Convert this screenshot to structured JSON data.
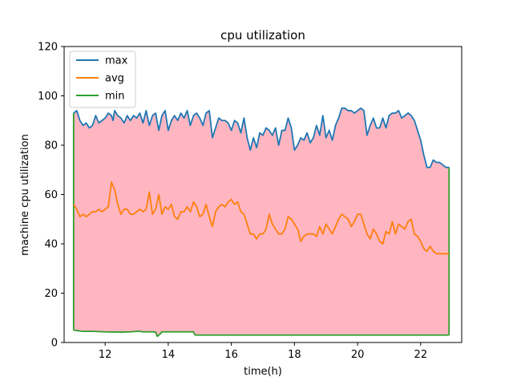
{
  "chart_data": {
    "type": "area",
    "title": "cpu utilization",
    "xlabel": "time(h)",
    "ylabel": "machine cpu utilization",
    "xlim": [
      10.7,
      23.3
    ],
    "ylim": [
      0,
      120
    ],
    "xticks": [
      12,
      14,
      16,
      18,
      20,
      22
    ],
    "yticks": [
      0,
      20,
      40,
      60,
      80,
      100,
      120
    ],
    "grid": false,
    "legend_position": "top-left",
    "fill_between": {
      "upper": "max",
      "lower": "min",
      "color": "#ffb6c1"
    },
    "series": [
      {
        "name": "max",
        "color": "#1f77b4",
        "points": [
          [
            11.0,
            93
          ],
          [
            11.1,
            94
          ],
          [
            11.2,
            90
          ],
          [
            11.3,
            88
          ],
          [
            11.4,
            89
          ],
          [
            11.5,
            87
          ],
          [
            11.6,
            88
          ],
          [
            11.7,
            92
          ],
          [
            11.8,
            89
          ],
          [
            11.9,
            90
          ],
          [
            12.0,
            91
          ],
          [
            12.1,
            93
          ],
          [
            12.2,
            92
          ],
          [
            12.25,
            90
          ],
          [
            12.3,
            94
          ],
          [
            12.4,
            92
          ],
          [
            12.5,
            91
          ],
          [
            12.6,
            89
          ],
          [
            12.7,
            92
          ],
          [
            12.8,
            90
          ],
          [
            12.9,
            92
          ],
          [
            13.0,
            91
          ],
          [
            13.1,
            93
          ],
          [
            13.2,
            89
          ],
          [
            13.3,
            94
          ],
          [
            13.4,
            88
          ],
          [
            13.5,
            92
          ],
          [
            13.6,
            93
          ],
          [
            13.7,
            86
          ],
          [
            13.8,
            92
          ],
          [
            13.9,
            94
          ],
          [
            14.0,
            86
          ],
          [
            14.1,
            90
          ],
          [
            14.2,
            92
          ],
          [
            14.3,
            90
          ],
          [
            14.4,
            93
          ],
          [
            14.5,
            91
          ],
          [
            14.6,
            94
          ],
          [
            14.7,
            88
          ],
          [
            14.8,
            92
          ],
          [
            14.9,
            93
          ],
          [
            15.0,
            91
          ],
          [
            15.1,
            88
          ],
          [
            15.2,
            93
          ],
          [
            15.3,
            94
          ],
          [
            15.4,
            83
          ],
          [
            15.5,
            87
          ],
          [
            15.6,
            91
          ],
          [
            15.7,
            90
          ],
          [
            15.8,
            90
          ],
          [
            15.9,
            89
          ],
          [
            16.0,
            86
          ],
          [
            16.1,
            90
          ],
          [
            16.2,
            89
          ],
          [
            16.3,
            85
          ],
          [
            16.4,
            91
          ],
          [
            16.5,
            83
          ],
          [
            16.6,
            78
          ],
          [
            16.7,
            83
          ],
          [
            16.8,
            79
          ],
          [
            16.9,
            85
          ],
          [
            17.0,
            84
          ],
          [
            17.1,
            87
          ],
          [
            17.2,
            86
          ],
          [
            17.3,
            84
          ],
          [
            17.4,
            87
          ],
          [
            17.5,
            80
          ],
          [
            17.6,
            86
          ],
          [
            17.7,
            86
          ],
          [
            17.8,
            91
          ],
          [
            17.9,
            87
          ],
          [
            18.0,
            78
          ],
          [
            18.1,
            80
          ],
          [
            18.2,
            83
          ],
          [
            18.3,
            82
          ],
          [
            18.4,
            85
          ],
          [
            18.5,
            81
          ],
          [
            18.6,
            83
          ],
          [
            18.7,
            88
          ],
          [
            18.8,
            84
          ],
          [
            18.9,
            92
          ],
          [
            19.0,
            83
          ],
          [
            19.1,
            86
          ],
          [
            19.2,
            82
          ],
          [
            19.3,
            88
          ],
          [
            19.4,
            91
          ],
          [
            19.5,
            95
          ],
          [
            19.6,
            95
          ],
          [
            19.7,
            94
          ],
          [
            19.8,
            94
          ],
          [
            19.9,
            93
          ],
          [
            20.0,
            94
          ],
          [
            20.1,
            95
          ],
          [
            20.2,
            94
          ],
          [
            20.3,
            84
          ],
          [
            20.4,
            88
          ],
          [
            20.5,
            91
          ],
          [
            20.6,
            87
          ],
          [
            20.7,
            87
          ],
          [
            20.8,
            91
          ],
          [
            20.9,
            87
          ],
          [
            21.0,
            92
          ],
          [
            21.1,
            93
          ],
          [
            21.2,
            93
          ],
          [
            21.3,
            94
          ],
          [
            21.4,
            91
          ],
          [
            21.5,
            92
          ],
          [
            21.6,
            93
          ],
          [
            21.7,
            92
          ],
          [
            21.8,
            90
          ],
          [
            21.9,
            86
          ],
          [
            22.0,
            82
          ],
          [
            22.1,
            76
          ],
          [
            22.2,
            71
          ],
          [
            22.3,
            71
          ],
          [
            22.4,
            74
          ],
          [
            22.5,
            73
          ],
          [
            22.6,
            73
          ],
          [
            22.7,
            72
          ],
          [
            22.8,
            71
          ],
          [
            22.9,
            71
          ]
        ]
      },
      {
        "name": "avg",
        "color": "#ff7f0e",
        "points": [
          [
            11.0,
            56
          ],
          [
            11.1,
            54
          ],
          [
            11.2,
            51
          ],
          [
            11.3,
            52
          ],
          [
            11.4,
            51
          ],
          [
            11.5,
            52
          ],
          [
            11.6,
            53
          ],
          [
            11.7,
            53
          ],
          [
            11.8,
            54
          ],
          [
            11.9,
            53
          ],
          [
            12.0,
            54
          ],
          [
            12.1,
            55
          ],
          [
            12.2,
            65
          ],
          [
            12.3,
            62
          ],
          [
            12.4,
            56
          ],
          [
            12.5,
            52
          ],
          [
            12.6,
            54
          ],
          [
            12.7,
            54
          ],
          [
            12.8,
            52
          ],
          [
            12.9,
            52
          ],
          [
            13.0,
            53
          ],
          [
            13.1,
            54
          ],
          [
            13.2,
            53
          ],
          [
            13.3,
            54
          ],
          [
            13.4,
            61
          ],
          [
            13.5,
            52
          ],
          [
            13.6,
            54
          ],
          [
            13.7,
            60
          ],
          [
            13.8,
            52
          ],
          [
            13.9,
            55
          ],
          [
            14.0,
            54
          ],
          [
            14.1,
            56
          ],
          [
            14.2,
            51
          ],
          [
            14.3,
            50
          ],
          [
            14.4,
            53
          ],
          [
            14.5,
            53
          ],
          [
            14.6,
            55
          ],
          [
            14.7,
            53
          ],
          [
            14.8,
            57
          ],
          [
            14.9,
            55
          ],
          [
            15.0,
            51
          ],
          [
            15.1,
            52
          ],
          [
            15.2,
            56
          ],
          [
            15.3,
            51
          ],
          [
            15.4,
            47
          ],
          [
            15.5,
            53
          ],
          [
            15.6,
            55
          ],
          [
            15.7,
            56
          ],
          [
            15.8,
            55
          ],
          [
            15.9,
            57
          ],
          [
            16.0,
            58
          ],
          [
            16.1,
            56
          ],
          [
            16.2,
            57
          ],
          [
            16.3,
            53
          ],
          [
            16.4,
            52
          ],
          [
            16.5,
            48
          ],
          [
            16.6,
            44
          ],
          [
            16.7,
            44
          ],
          [
            16.8,
            42
          ],
          [
            16.9,
            44
          ],
          [
            17.0,
            44
          ],
          [
            17.1,
            46
          ],
          [
            17.2,
            52
          ],
          [
            17.3,
            48
          ],
          [
            17.4,
            46
          ],
          [
            17.5,
            44
          ],
          [
            17.6,
            44
          ],
          [
            17.7,
            46
          ],
          [
            17.8,
            51
          ],
          [
            17.9,
            50
          ],
          [
            18.0,
            48
          ],
          [
            18.1,
            46
          ],
          [
            18.2,
            41
          ],
          [
            18.3,
            43
          ],
          [
            18.4,
            44
          ],
          [
            18.5,
            44
          ],
          [
            18.6,
            44
          ],
          [
            18.7,
            43
          ],
          [
            18.8,
            47
          ],
          [
            18.9,
            44
          ],
          [
            19.0,
            48
          ],
          [
            19.1,
            46
          ],
          [
            19.2,
            44
          ],
          [
            19.3,
            47
          ],
          [
            19.4,
            50
          ],
          [
            19.5,
            52
          ],
          [
            19.6,
            51
          ],
          [
            19.7,
            50
          ],
          [
            19.8,
            47
          ],
          [
            19.9,
            49
          ],
          [
            20.0,
            52
          ],
          [
            20.1,
            52
          ],
          [
            20.2,
            48
          ],
          [
            20.3,
            44
          ],
          [
            20.4,
            42
          ],
          [
            20.5,
            46
          ],
          [
            20.6,
            44
          ],
          [
            20.7,
            41
          ],
          [
            20.8,
            40
          ],
          [
            20.9,
            45
          ],
          [
            21.0,
            44
          ],
          [
            21.1,
            49
          ],
          [
            21.2,
            44
          ],
          [
            21.3,
            48
          ],
          [
            21.4,
            47
          ],
          [
            21.5,
            46
          ],
          [
            21.6,
            49
          ],
          [
            21.7,
            50
          ],
          [
            21.8,
            44
          ],
          [
            21.9,
            43
          ],
          [
            22.0,
            41
          ],
          [
            22.1,
            38
          ],
          [
            22.2,
            37
          ],
          [
            22.3,
            39
          ],
          [
            22.4,
            37
          ],
          [
            22.5,
            36
          ],
          [
            22.6,
            36
          ],
          [
            22.7,
            36
          ],
          [
            22.8,
            36
          ],
          [
            22.9,
            36
          ]
        ]
      },
      {
        "name": "min",
        "color": "#2ca02c",
        "points": [
          [
            11.0,
            5
          ],
          [
            11.3,
            4.5
          ],
          [
            11.6,
            4.5
          ],
          [
            12.0,
            4.3
          ],
          [
            12.5,
            4.2
          ],
          [
            12.8,
            4.3
          ],
          [
            13.0,
            4.5
          ],
          [
            13.1,
            4.5
          ],
          [
            13.2,
            4.3
          ],
          [
            13.5,
            4.3
          ],
          [
            13.6,
            4.2
          ],
          [
            13.65,
            2.5
          ],
          [
            13.75,
            3.5
          ],
          [
            13.8,
            4.3
          ],
          [
            14.0,
            4.3
          ],
          [
            14.5,
            4.3
          ],
          [
            14.8,
            4.3
          ],
          [
            14.85,
            3
          ],
          [
            15.0,
            3
          ],
          [
            15.5,
            3
          ],
          [
            16.0,
            3
          ],
          [
            17.0,
            3
          ],
          [
            18.0,
            3
          ],
          [
            19.0,
            3
          ],
          [
            20.0,
            3
          ],
          [
            21.0,
            3
          ],
          [
            22.0,
            3
          ],
          [
            22.5,
            3
          ],
          [
            22.9,
            3
          ]
        ]
      }
    ]
  }
}
